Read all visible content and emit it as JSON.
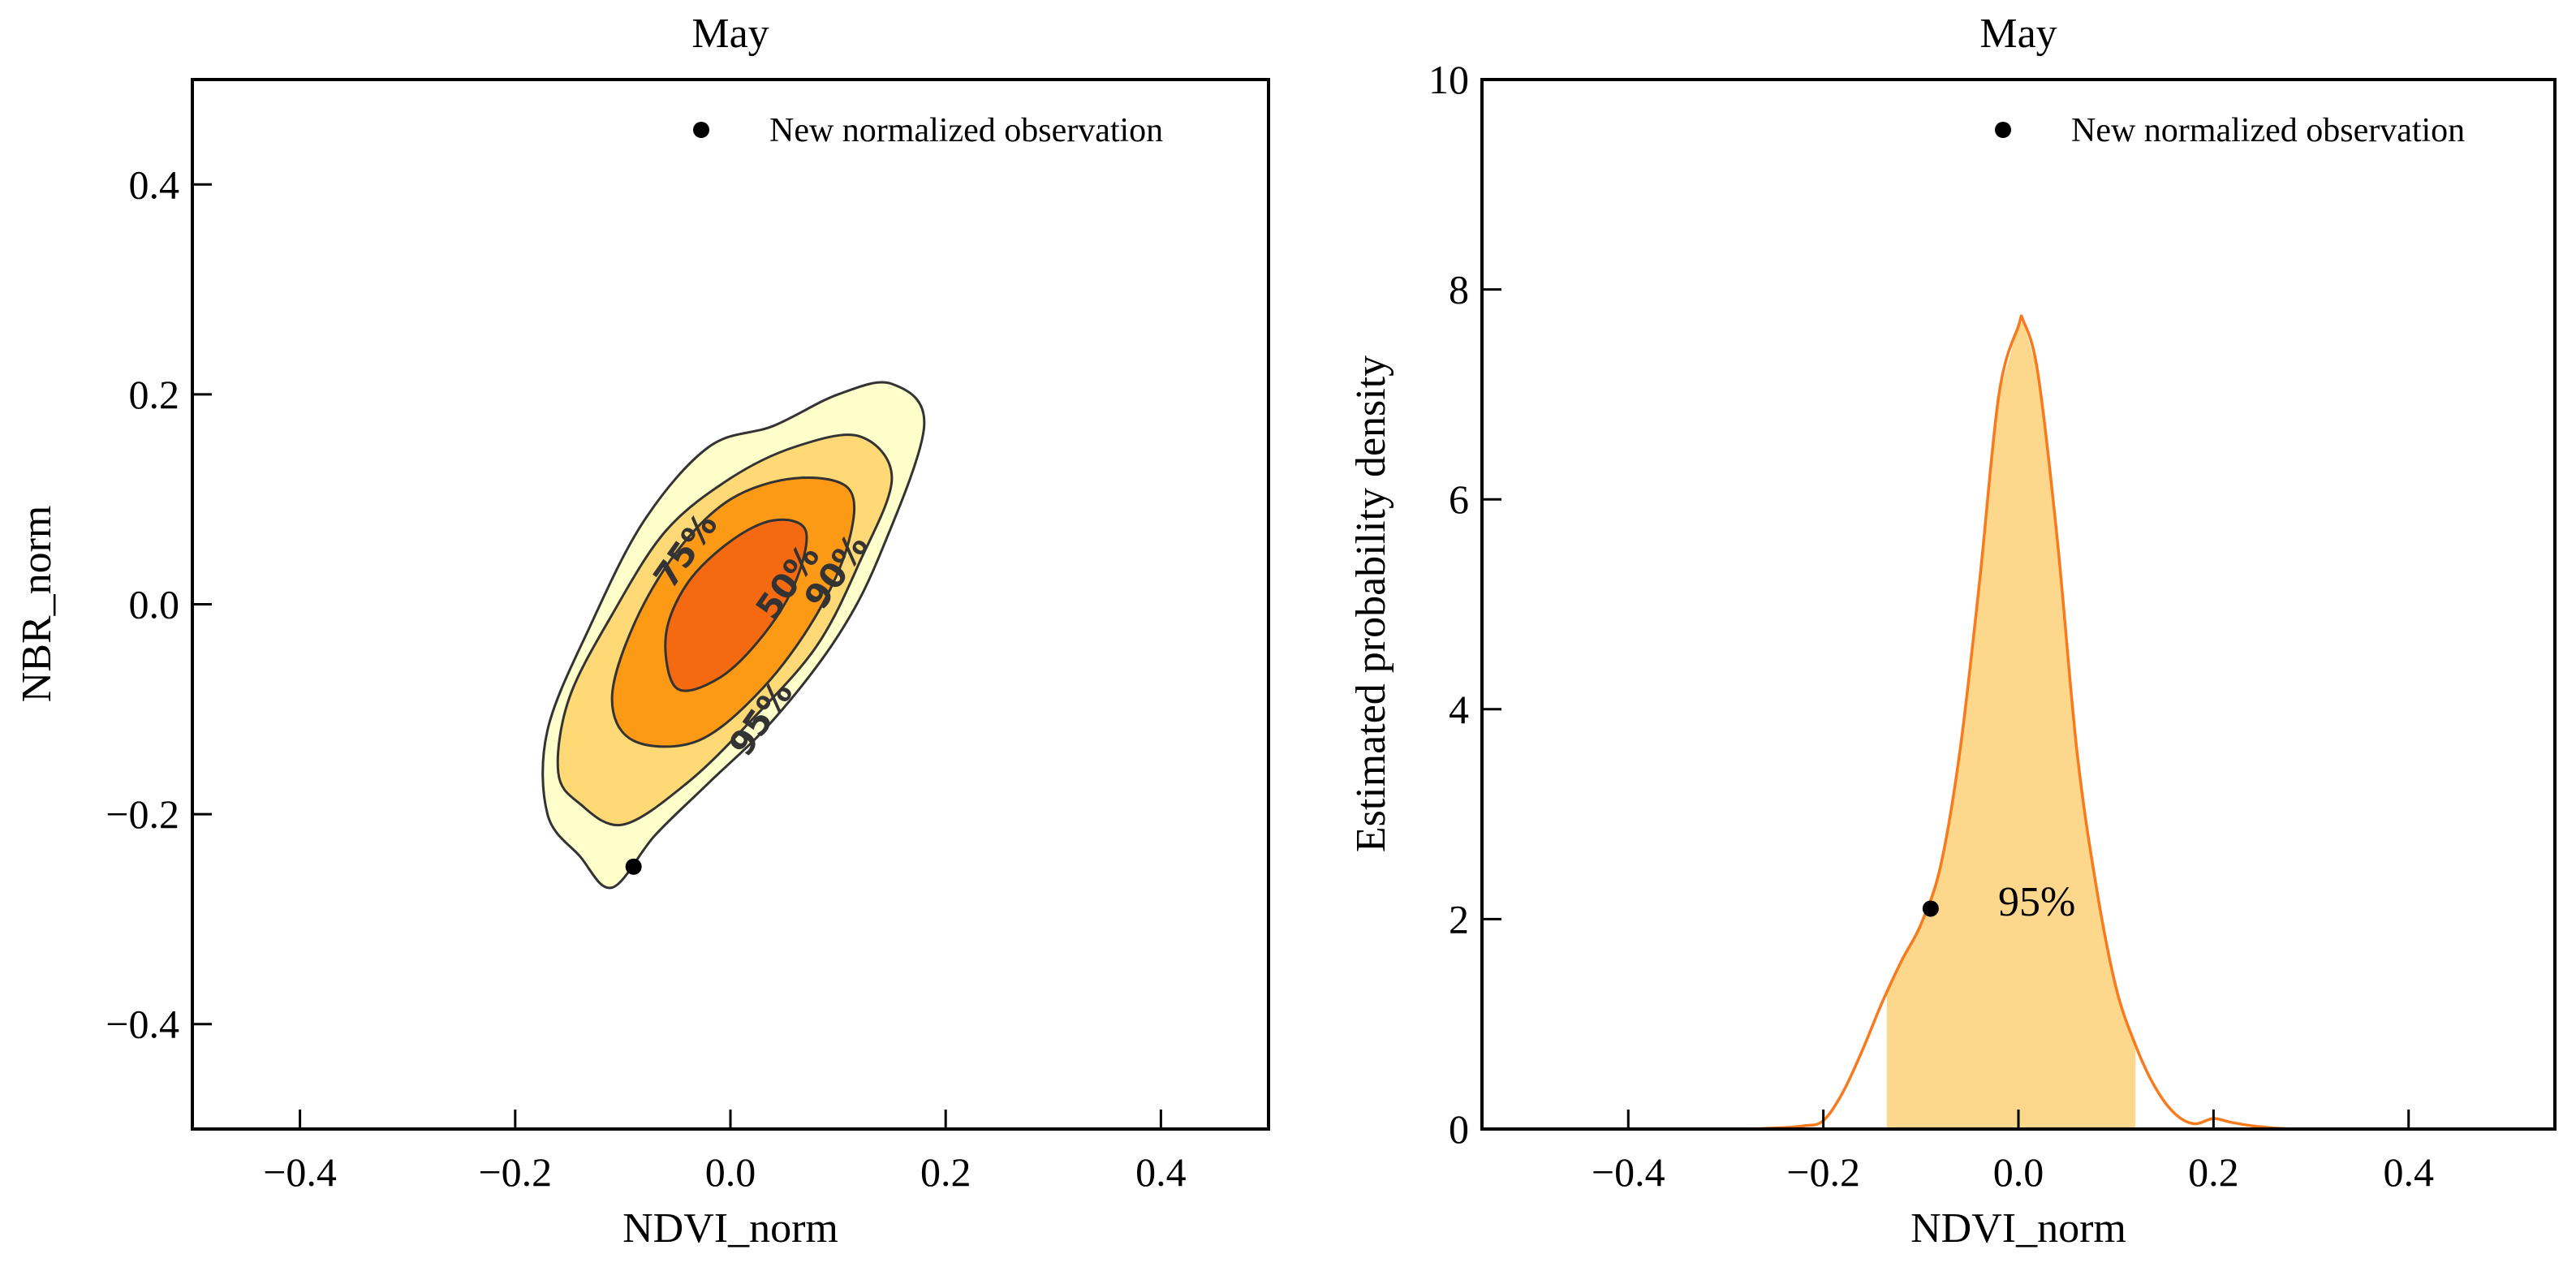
{
  "colors": {
    "contour_95": "#ffffcc",
    "contour_90": "#fed976",
    "contour_75": "#fd9a15",
    "contour_50": "#f56a10",
    "contour_line": "#333333",
    "density_line": "#f97a1c",
    "density_fill": "#fdd78b",
    "marker": "#000000"
  },
  "chart_data": [
    {
      "type": "contour",
      "title": "May",
      "xlabel": "NDVI_norm",
      "ylabel": "NBR_norm",
      "xlim": [
        -0.5,
        0.5
      ],
      "ylim": [
        -0.5,
        0.5
      ],
      "xticks": [
        -0.4,
        -0.2,
        0.0,
        0.2,
        0.4
      ],
      "xtick_labels": [
        "−0.4",
        "−0.2",
        "0.0",
        "0.2",
        "0.4"
      ],
      "yticks": [
        -0.4,
        -0.2,
        0.0,
        0.2,
        0.4
      ],
      "ytick_labels": [
        "−0.4",
        "−0.2",
        "0.0",
        "0.2",
        "0.4"
      ],
      "legend": {
        "label": "New normalized observation",
        "position": "top-right"
      },
      "observation": {
        "x": -0.09,
        "y": -0.25
      },
      "contours": [
        {
          "level": "95%",
          "points": [
            [
              -0.14,
              -0.24
            ],
            [
              -0.11,
              -0.27
            ],
            [
              -0.07,
              -0.22
            ],
            [
              -0.02,
              -0.17
            ],
            [
              0.04,
              -0.11
            ],
            [
              0.1,
              -0.03
            ],
            [
              0.14,
              0.05
            ],
            [
              0.18,
              0.17
            ],
            [
              0.15,
              0.21
            ],
            [
              0.1,
              0.2
            ],
            [
              0.04,
              0.17
            ],
            [
              -0.02,
              0.15
            ],
            [
              -0.08,
              0.08
            ],
            [
              -0.13,
              -0.02
            ],
            [
              -0.17,
              -0.12
            ],
            [
              -0.17,
              -0.2
            ]
          ]
        },
        {
          "level": "90%",
          "points": [
            [
              -0.14,
              -0.19
            ],
            [
              -0.1,
              -0.21
            ],
            [
              -0.04,
              -0.17
            ],
            [
              0.02,
              -0.11
            ],
            [
              0.08,
              -0.04
            ],
            [
              0.12,
              0.04
            ],
            [
              0.15,
              0.12
            ],
            [
              0.12,
              0.16
            ],
            [
              0.06,
              0.15
            ],
            [
              0.0,
              0.12
            ],
            [
              -0.06,
              0.07
            ],
            [
              -0.11,
              -0.01
            ],
            [
              -0.15,
              -0.09
            ],
            [
              -0.16,
              -0.16
            ]
          ]
        },
        {
          "level": "75%",
          "points": [
            [
              -0.09,
              -0.13
            ],
            [
              -0.03,
              -0.13
            ],
            [
              0.03,
              -0.08
            ],
            [
              0.08,
              -0.01
            ],
            [
              0.11,
              0.06
            ],
            [
              0.11,
              0.11
            ],
            [
              0.06,
              0.12
            ],
            [
              0.0,
              0.1
            ],
            [
              -0.05,
              0.05
            ],
            [
              -0.09,
              -0.02
            ],
            [
              -0.11,
              -0.09
            ]
          ]
        },
        {
          "level": "50%",
          "points": [
            [
              -0.05,
              -0.08
            ],
            [
              -0.01,
              -0.07
            ],
            [
              0.03,
              -0.03
            ],
            [
              0.06,
              0.02
            ],
            [
              0.07,
              0.07
            ],
            [
              0.04,
              0.08
            ],
            [
              0.0,
              0.06
            ],
            [
              -0.04,
              0.02
            ],
            [
              -0.06,
              -0.03
            ]
          ]
        }
      ],
      "contour_labels": [
        {
          "text": "75%",
          "x": -0.04,
          "y": 0.05
        },
        {
          "text": "50%",
          "x": 0.055,
          "y": 0.02
        },
        {
          "text": "90%",
          "x": 0.1,
          "y": 0.03
        },
        {
          "text": "95%",
          "x": 0.03,
          "y": -0.11
        }
      ]
    },
    {
      "type": "area",
      "title": "May",
      "xlabel": "NDVI_norm",
      "ylabel": "Estimated probability density",
      "xlim": [
        -0.55,
        0.55
      ],
      "ylim": [
        0,
        10
      ],
      "xticks": [
        -0.4,
        -0.2,
        0.0,
        0.2,
        0.4
      ],
      "xtick_labels": [
        "−0.4",
        "−0.2",
        "0.0",
        "0.2",
        "0.4"
      ],
      "yticks": [
        0,
        2,
        4,
        6,
        8,
        10
      ],
      "ytick_labels": [
        "0",
        "2",
        "4",
        "6",
        "8",
        "10"
      ],
      "legend": {
        "label": "New normalized observation",
        "position": "top-right"
      },
      "observation": {
        "x": -0.09,
        "y": 2.1
      },
      "interval_label": "95%",
      "interval": [
        -0.135,
        0.12
      ],
      "density": {
        "x": [
          -0.5,
          -0.3,
          -0.25,
          -0.22,
          -0.2,
          -0.18,
          -0.16,
          -0.14,
          -0.12,
          -0.1,
          -0.08,
          -0.06,
          -0.04,
          -0.02,
          0.0,
          0.005,
          0.02,
          0.04,
          0.06,
          0.08,
          0.1,
          0.12,
          0.14,
          0.16,
          0.18,
          0.2,
          0.22,
          0.25,
          0.3,
          0.5
        ],
        "y": [
          0.0,
          0.0,
          0.01,
          0.03,
          0.08,
          0.35,
          0.75,
          1.2,
          1.6,
          1.95,
          2.5,
          3.6,
          5.2,
          7.0,
          7.65,
          7.7,
          7.2,
          5.6,
          3.6,
          2.3,
          1.35,
          0.8,
          0.4,
          0.15,
          0.05,
          0.1,
          0.06,
          0.02,
          0.0,
          0.0
        ]
      }
    }
  ]
}
